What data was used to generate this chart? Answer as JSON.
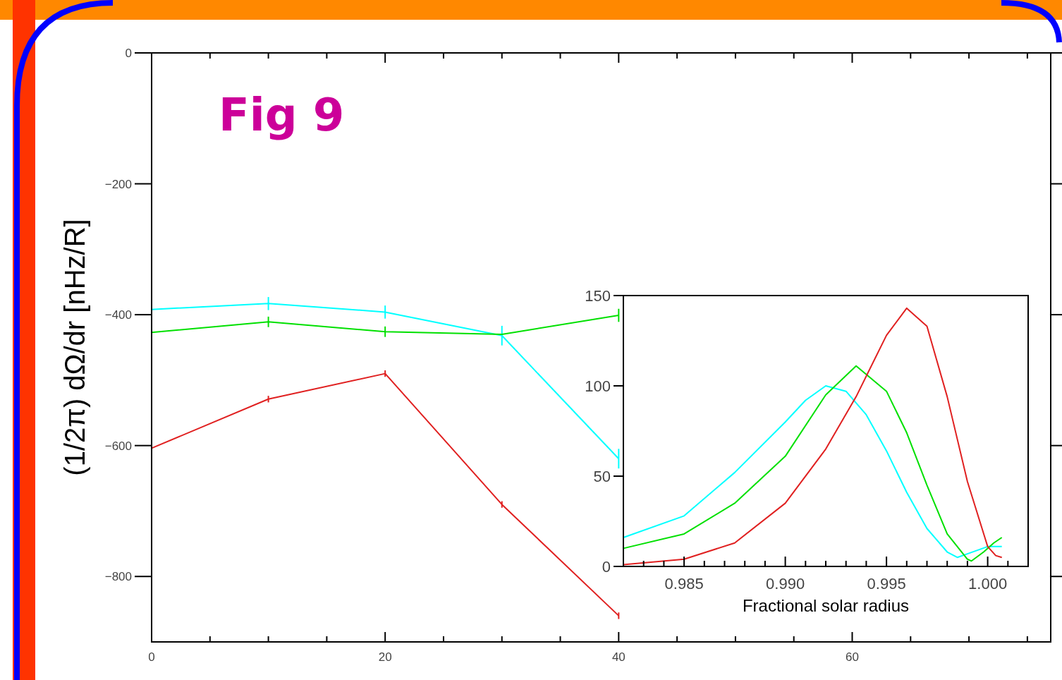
{
  "chart_data": [
    {
      "type": "line",
      "title": "Fig 9",
      "ylabel": "(1/2π) dΩ/dr [nHz/R]",
      "x": [
        0,
        10,
        20,
        30,
        40
      ],
      "xlim": [
        0,
        77
      ],
      "xticks": [
        0,
        {
          "value": 5,
          "label": null
        },
        {
          "value": 10,
          "label": null
        },
        {
          "value": 15,
          "label": null
        },
        20,
        {
          "value": 25,
          "label": null
        },
        {
          "value": 30,
          "label": null
        },
        {
          "value": 35,
          "label": null
        },
        40,
        {
          "value": 45,
          "label": null
        },
        {
          "value": 50,
          "label": null
        },
        {
          "value": 55,
          "label": null
        },
        60,
        {
          "value": 65,
          "label": null
        },
        {
          "value": 70,
          "label": null
        },
        {
          "value": 75,
          "label": null
        }
      ],
      "ylim": [
        -900,
        0
      ],
      "yticks": [
        0,
        -200,
        -400,
        -600,
        -800
      ],
      "grid": false,
      "marker": "none",
      "line_style": "solid",
      "series": [
        {
          "color": "#00ffff",
          "values": [
            -392,
            -383,
            -396,
            -432,
            -620
          ],
          "errors": [
            null,
            10,
            10,
            15,
            15
          ]
        },
        {
          "color": "#00e000",
          "values": [
            -427,
            -411,
            -426,
            -430,
            -401
          ],
          "errors": [
            null,
            8,
            8,
            null,
            10
          ]
        },
        {
          "color": "#e02020",
          "values": [
            -604,
            -529,
            -490,
            -690,
            -860
          ],
          "errors": [
            null,
            5,
            5,
            5,
            5
          ]
        }
      ]
    },
    {
      "type": "line",
      "xlabel": "Fractional solar radius",
      "xlim": [
        0.982,
        1.002
      ],
      "xticks": [
        {
          "value": 0.983,
          "label": null
        },
        {
          "value": 0.984,
          "label": null
        },
        {
          "value": 0.985,
          "label": "0.985"
        },
        {
          "value": 0.986,
          "label": null
        },
        {
          "value": 0.987,
          "label": null
        },
        {
          "value": 0.988,
          "label": null
        },
        {
          "value": 0.989,
          "label": null
        },
        {
          "value": 0.99,
          "label": "0.990"
        },
        {
          "value": 0.991,
          "label": null
        },
        {
          "value": 0.992,
          "label": null
        },
        {
          "value": 0.993,
          "label": null
        },
        {
          "value": 0.994,
          "label": null
        },
        {
          "value": 0.995,
          "label": "0.995"
        },
        {
          "value": 0.996,
          "label": null
        },
        {
          "value": 0.997,
          "label": null
        },
        {
          "value": 0.998,
          "label": null
        },
        {
          "value": 0.999,
          "label": null
        },
        {
          "value": 1,
          "label": "1.000"
        },
        {
          "value": 1.001,
          "label": null
        }
      ],
      "ylim": [
        0,
        150
      ],
      "yticks": [
        0,
        50,
        100,
        150
      ],
      "grid": false,
      "marker": "none",
      "line_style": "solid",
      "series": [
        {
          "color": "#00ffff",
          "x": [
            0.982,
            0.985,
            0.9875,
            0.99,
            0.991,
            0.992,
            0.993,
            0.994,
            0.995,
            0.996,
            0.997,
            0.998,
            0.9985,
            0.999,
            1.0,
            1.0007
          ],
          "values": [
            16,
            28,
            52,
            80,
            92,
            100,
            97,
            84,
            64,
            41,
            21,
            8,
            5,
            7,
            11,
            11
          ]
        },
        {
          "color": "#00e000",
          "x": [
            0.982,
            0.985,
            0.9875,
            0.99,
            0.992,
            0.9935,
            0.995,
            0.996,
            0.997,
            0.998,
            0.999,
            0.9992,
            0.9998,
            1.0003,
            1.0007
          ],
          "values": [
            10,
            18,
            35,
            61,
            95,
            111,
            97,
            74,
            45,
            18,
            4,
            3,
            8,
            13,
            16
          ]
        },
        {
          "color": "#e02020",
          "x": [
            0.982,
            0.985,
            0.9875,
            0.99,
            0.992,
            0.9935,
            0.995,
            0.996,
            0.997,
            0.998,
            0.999,
            1.0,
            1.0004,
            1.0007
          ],
          "values": [
            1,
            4,
            13,
            35,
            65,
            94,
            128,
            143,
            133,
            94,
            47,
            11,
            6,
            5
          ]
        }
      ]
    }
  ]
}
